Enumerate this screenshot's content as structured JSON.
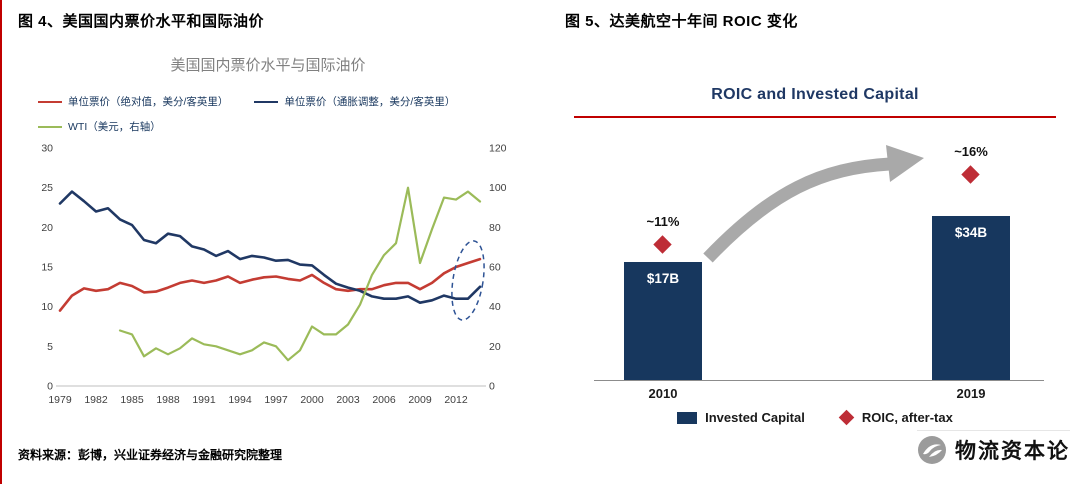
{
  "figure4": {
    "heading": "图 4、美国国内票价水平和国际油价",
    "source": "资料来源：彭博，兴业证券经济与金融研究院整理"
  },
  "figure5": {
    "heading": "图 5、达美航空十年间 ROIC 变化",
    "watermark": "物流资本论"
  },
  "colors": {
    "fare_absolute_line": "#c43c33",
    "fare_real_line": "#203864",
    "wti_line": "#9bbb59",
    "bar_navy": "#17375e",
    "roic_red": "#be2d36",
    "title_underline_red": "#c00000",
    "highlight_ellipse_blue": "#2e5395"
  },
  "chart_data": [
    {
      "type": "line",
      "title": "美国国内票价水平与国际油价",
      "x": [
        1979,
        1980,
        1981,
        1982,
        1983,
        1984,
        1985,
        1986,
        1987,
        1988,
        1989,
        1990,
        1991,
        1992,
        1993,
        1994,
        1995,
        1996,
        1997,
        1998,
        1999,
        2000,
        2001,
        2002,
        2003,
        2004,
        2005,
        2006,
        2007,
        2008,
        2009,
        2010,
        2011,
        2012,
        2013,
        2014
      ],
      "x_label_ticks": [
        1979,
        1982,
        1985,
        1988,
        1991,
        1994,
        1997,
        2000,
        2003,
        2006,
        2009,
        2012
      ],
      "left_axis": {
        "min": 0,
        "max": 30,
        "ticks": [
          0,
          5,
          10,
          15,
          20,
          25,
          30
        ]
      },
      "right_axis": {
        "min": 0,
        "max": 120,
        "ticks": [
          0,
          20,
          40,
          60,
          80,
          100,
          120
        ]
      },
      "grid": false,
      "legend_position": "top-left",
      "series": [
        {
          "name": "单位票价（绝对值，美分/客英里）",
          "color": "#c43c33",
          "axis": "left",
          "values": [
            9.5,
            11.4,
            12.3,
            12.0,
            12.2,
            13.0,
            12.6,
            11.8,
            11.9,
            12.4,
            13.0,
            13.3,
            13.0,
            13.3,
            13.8,
            13.0,
            13.4,
            13.7,
            13.8,
            13.5,
            13.3,
            14.0,
            13.0,
            12.2,
            12.0,
            12.2,
            12.2,
            12.7,
            13.0,
            13.0,
            12.2,
            13.0,
            14.2,
            15.0,
            15.5,
            16.0
          ]
        },
        {
          "name": "单位票价（通胀调整，美分/客英里）",
          "color": "#203864",
          "axis": "left",
          "values": [
            23.0,
            24.5,
            23.3,
            22.0,
            22.4,
            21.0,
            20.3,
            18.4,
            18.0,
            19.2,
            18.9,
            17.6,
            17.2,
            16.4,
            17.0,
            16.0,
            16.4,
            16.2,
            15.8,
            15.9,
            15.3,
            15.2,
            14.0,
            12.9,
            12.4,
            12.0,
            11.3,
            11.0,
            11.0,
            11.3,
            10.5,
            10.8,
            11.4,
            11.0,
            11.0,
            12.5
          ]
        },
        {
          "name": "WTI（美元，右轴）",
          "color": "#9bbb59",
          "axis": "right",
          "values": [
            null,
            null,
            null,
            null,
            null,
            28,
            26,
            15,
            19,
            16,
            19,
            24,
            21,
            20,
            18,
            16,
            18,
            22,
            20,
            13,
            18,
            30,
            26,
            26,
            31,
            41,
            56,
            66,
            72,
            100,
            62,
            79,
            95,
            94,
            98,
            93
          ]
        }
      ],
      "annotation": {
        "shape": "dashed-ellipse",
        "x_year": 2013,
        "y_value": 13.3
      }
    },
    {
      "type": "bar",
      "title": "ROIC and Invested Capital",
      "categories": [
        "2010",
        "2019"
      ],
      "bars": {
        "name": "Invested Capital",
        "color": "#17375e",
        "values_billions_usd": [
          17,
          34
        ],
        "labels": [
          "$17B",
          "$34B"
        ]
      },
      "points": {
        "name": "ROIC, after-tax",
        "color": "#be2d36",
        "values_pct": [
          11,
          16
        ],
        "labels": [
          "~11%",
          "~16%"
        ]
      },
      "legend_position": "bottom-center"
    }
  ]
}
